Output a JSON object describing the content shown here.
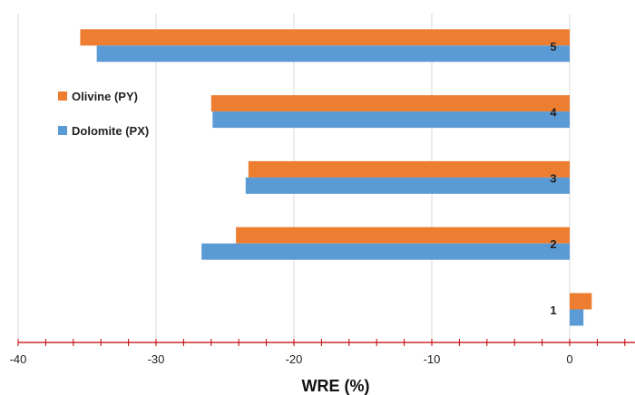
{
  "chart_data": {
    "type": "bar",
    "orientation": "horizontal",
    "categories": [
      "1",
      "2",
      "3",
      "4",
      "5"
    ],
    "series": [
      {
        "name": "Olivine (PY)",
        "color": "#ed7d31",
        "values": [
          1.6,
          -24.2,
          -23.3,
          -26.0,
          -35.5
        ]
      },
      {
        "name": "Dolomite (PX)",
        "color": "#5b9bd5",
        "values": [
          1.0,
          -26.7,
          -23.5,
          -25.9,
          -34.3
        ]
      }
    ],
    "xlabel": "WRE (%)",
    "ylabel": "",
    "xlim": [
      -40,
      5
    ],
    "xticks": [
      -40,
      -30,
      -20,
      -10,
      0
    ],
    "grid": "vertical",
    "legend_placement": "left",
    "axis_color": "#c00000"
  }
}
